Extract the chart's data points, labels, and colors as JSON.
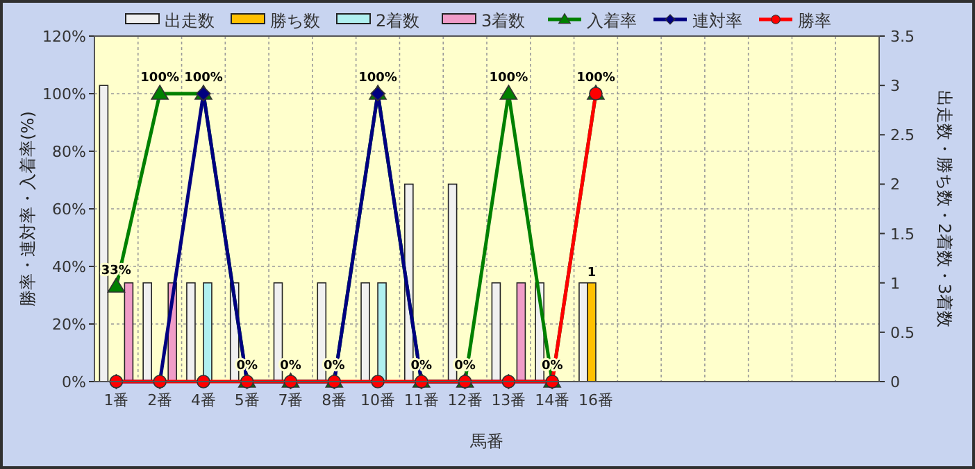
{
  "chart_data": {
    "type": "bar",
    "xlabel": "馬番",
    "ylabel": "勝率・連対率・入着率(%)",
    "y2label": "出走数・勝ち数・2着数・3着数",
    "legend": "top",
    "grid": true,
    "categories": [
      "1番",
      "2番",
      "4番",
      "5番",
      "7番",
      "8番",
      "10番",
      "11番",
      "12番",
      "13番",
      "14番",
      "16番",
      null,
      null,
      null,
      null,
      null,
      null
    ],
    "ylim": [
      0,
      120
    ],
    "yticks": [
      {
        "value": 0,
        "label": "0%"
      },
      {
        "value": 20,
        "label": "20%"
      },
      {
        "value": 40,
        "label": "40%"
      },
      {
        "value": 60,
        "label": "60%"
      },
      {
        "value": 80,
        "label": "80%"
      },
      {
        "value": 100,
        "label": "100%"
      },
      {
        "value": 120,
        "label": "120%"
      }
    ],
    "y2lim": [
      0,
      3.5
    ],
    "y2ticks": [
      0,
      0.5,
      1,
      1.5,
      2,
      2.5,
      3,
      3.5
    ],
    "series": [
      {
        "name": "出走数",
        "axis": "y2",
        "color": "#f0f0f0",
        "values": [
          3,
          1,
          1,
          1,
          1,
          1,
          1,
          2,
          2,
          1,
          1,
          1,
          null,
          null,
          null,
          null,
          null,
          null
        ]
      },
      {
        "name": "勝ち数",
        "axis": "y2",
        "color": "#ffc000",
        "values": [
          0,
          0,
          0,
          0,
          0,
          0,
          0,
          0,
          0,
          0,
          0,
          1,
          null,
          null,
          null,
          null,
          null,
          null
        ],
        "value_labels": [
          null,
          null,
          null,
          null,
          null,
          null,
          null,
          null,
          null,
          null,
          null,
          "1",
          null,
          null,
          null,
          null,
          null,
          null
        ]
      },
      {
        "name": "2着数",
        "axis": "y2",
        "color": "#b0f0f0",
        "values": [
          0,
          0,
          1,
          0,
          0,
          0,
          1,
          0,
          0,
          0,
          0,
          0,
          null,
          null,
          null,
          null,
          null,
          null
        ]
      },
      {
        "name": "3着数",
        "axis": "y2",
        "color": "#f09cc8",
        "values": [
          1,
          1,
          0,
          0,
          0,
          0,
          0,
          0,
          0,
          1,
          0,
          0,
          null,
          null,
          null,
          null,
          null,
          null
        ]
      },
      {
        "name": "入着率",
        "type": "line",
        "marker": "triangle",
        "color": "#008000",
        "values": [
          33,
          100,
          100,
          0,
          0,
          0,
          100,
          0,
          0,
          100,
          0,
          100,
          null,
          null,
          null,
          null,
          null,
          null
        ],
        "value_labels": [
          "33%",
          "100%",
          "100%",
          "0%",
          "0%",
          "0%",
          "100%",
          "0%",
          "0%",
          "100%",
          "0%",
          "100%",
          null,
          null,
          null,
          null,
          null,
          null
        ]
      },
      {
        "name": "連対率",
        "type": "line",
        "marker": "diamond",
        "color": "#000080",
        "values": [
          0,
          0,
          100,
          0,
          0,
          0,
          100,
          0,
          0,
          0,
          0,
          null,
          null,
          null,
          null,
          null,
          null,
          null
        ]
      },
      {
        "name": "勝率",
        "type": "line",
        "marker": "circle",
        "color": "#ff0000",
        "values": [
          0,
          0,
          0,
          0,
          0,
          0,
          0,
          0,
          0,
          0,
          0,
          100,
          null,
          null,
          null,
          null,
          null,
          null
        ]
      }
    ]
  }
}
